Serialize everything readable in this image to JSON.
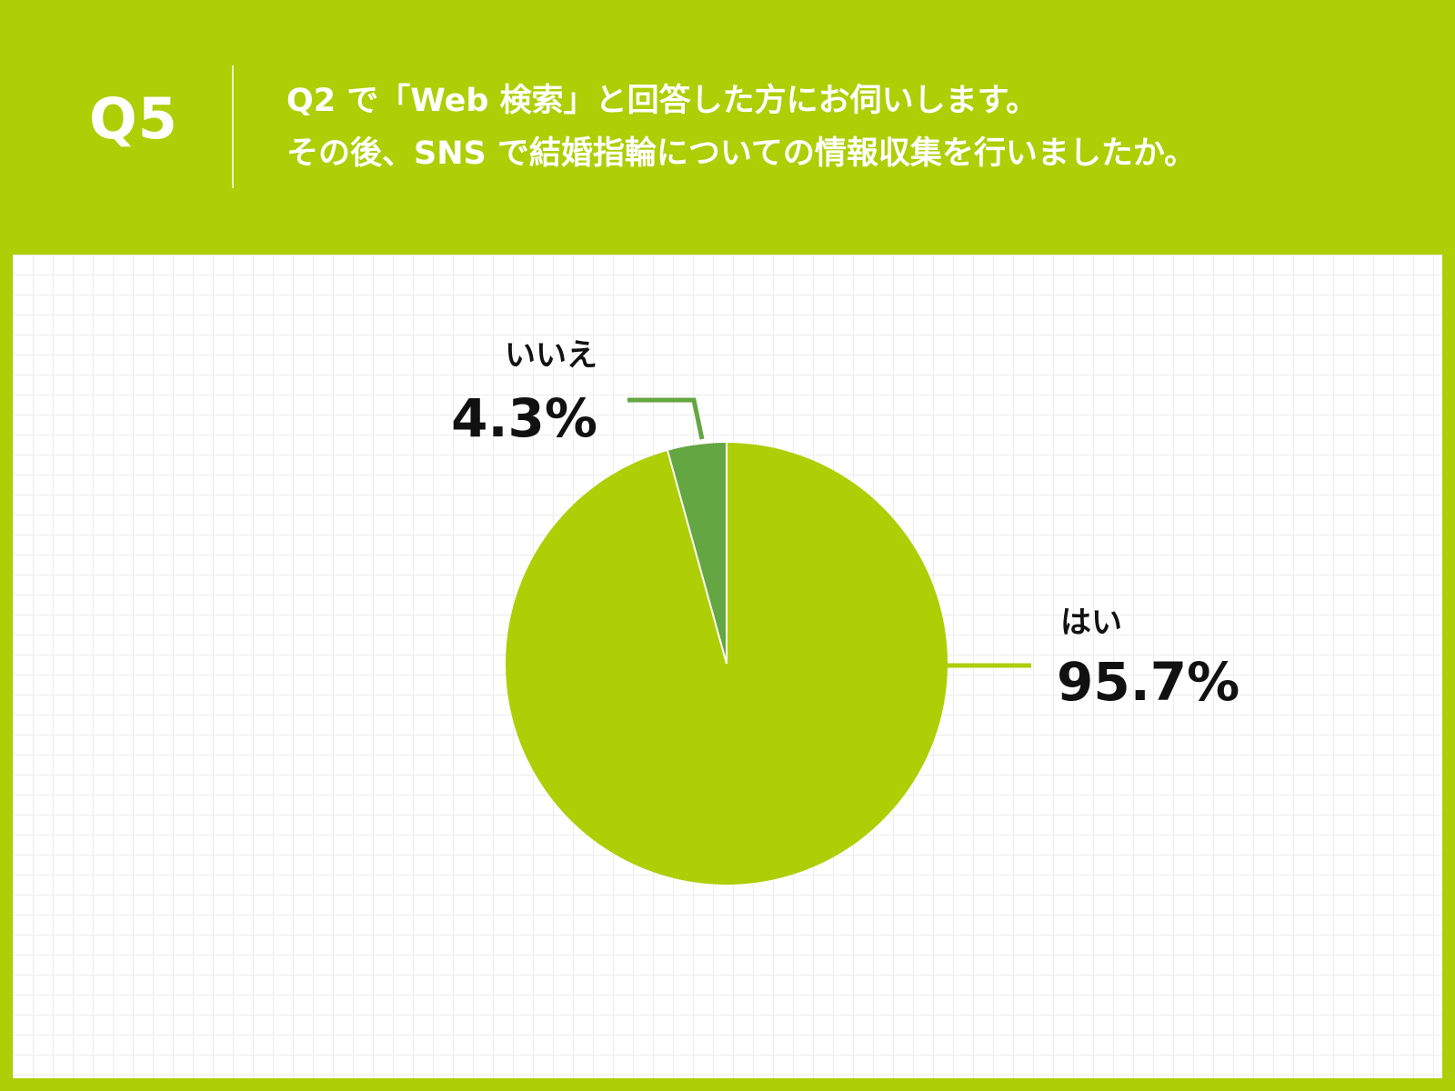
{
  "header": {
    "number": "Q5",
    "question_lines": [
      "Q2 で「Web 検索」と回答した方にお伺いします。",
      "その後、SNS で結婚指輪についての情報収集を行いましたか。"
    ]
  },
  "colors": {
    "background": "#aece06",
    "slice_yes": "#aece06",
    "slice_no": "#64a642"
  },
  "chart_data": {
    "type": "pie",
    "title": "",
    "slices": [
      {
        "label": "はい",
        "value": 95.7,
        "display": "95.7%",
        "color": "#aece06"
      },
      {
        "label": "いいえ",
        "value": 4.3,
        "display": "4.3%",
        "color": "#64a642"
      }
    ]
  }
}
